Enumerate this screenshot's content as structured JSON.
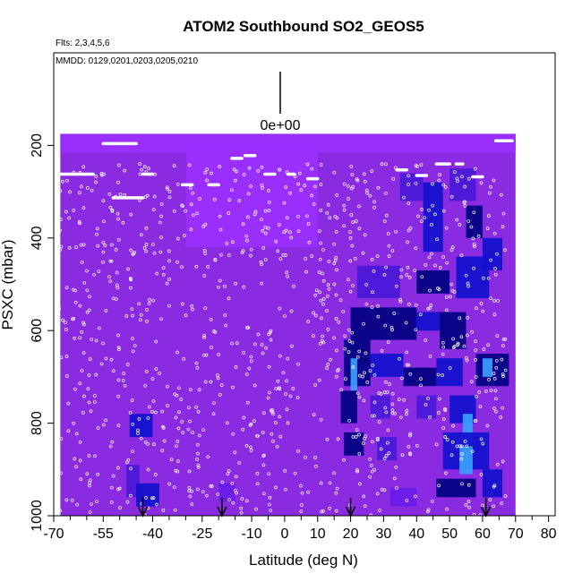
{
  "chart_data": {
    "type": "heatmap",
    "title": "ATOM2 Southbound SO2_GEOS5",
    "flights_label": "Flts: 2,3,4,5,6",
    "dates_label": "MMDD: 0129,0201,0203,0205,0210",
    "scale_label": "0e+00",
    "xlabel": "Latitude (deg N)",
    "ylabel": "PSXC (mbar)",
    "xlim": [
      -70,
      82
    ],
    "ylim": [
      1000,
      0
    ],
    "x_ticks": [
      -70,
      -55,
      -40,
      -25,
      -10,
      0,
      10,
      20,
      30,
      40,
      50,
      60,
      70,
      80
    ],
    "x_tick_labels": [
      "-70",
      "-55",
      "-40",
      "-25",
      "-10",
      "0",
      "10",
      "20",
      "30",
      "40",
      "50",
      "60",
      "70",
      "80"
    ],
    "y_ticks": [
      200,
      400,
      600,
      800,
      1000
    ],
    "y_tick_labels": [
      "200",
      "400",
      "600",
      "800",
      "1000"
    ],
    "colors": {
      "background": "#8a2be2",
      "light": "#9b30ff",
      "blue": "#1010cc",
      "navy": "#000080",
      "cyan": "#3aa0ff",
      "points": "#ffffff",
      "arrow": "#000000"
    },
    "field_extent": {
      "lat": [
        -68,
        70
      ],
      "p_top": 175,
      "p_bottom": 1000
    },
    "blocks": [
      {
        "lat": [
          -68,
          70
        ],
        "p": [
          175,
          215
        ],
        "level": 0
      },
      {
        "lat": [
          -30,
          10
        ],
        "p": [
          200,
          420
        ],
        "level": 0.1
      },
      {
        "lat": [
          -47,
          -40
        ],
        "p": [
          780,
          830
        ],
        "level": 0.8
      },
      {
        "lat": [
          -48,
          -44
        ],
        "p": [
          890,
          960
        ],
        "level": 0.5
      },
      {
        "lat": [
          -45,
          -38
        ],
        "p": [
          930,
          980
        ],
        "level": 0.7
      },
      {
        "lat": [
          -20,
          -15
        ],
        "p": [
          930,
          970
        ],
        "level": 0.4
      },
      {
        "lat": [
          35,
          42
        ],
        "p": [
          260,
          320
        ],
        "level": 0.6
      },
      {
        "lat": [
          42,
          48
        ],
        "p": [
          280,
          430
        ],
        "level": 0.8
      },
      {
        "lat": [
          50,
          58
        ],
        "p": [
          250,
          320
        ],
        "level": 0.6
      },
      {
        "lat": [
          55,
          60
        ],
        "p": [
          330,
          400
        ],
        "level": 0.9
      },
      {
        "lat": [
          60,
          66
        ],
        "p": [
          400,
          470
        ],
        "level": 0.7
      },
      {
        "lat": [
          22,
          35
        ],
        "p": [
          460,
          530
        ],
        "level": 0.5
      },
      {
        "lat": [
          40,
          50
        ],
        "p": [
          470,
          520
        ],
        "level": 0.9
      },
      {
        "lat": [
          52,
          62
        ],
        "p": [
          440,
          530
        ],
        "level": 0.8
      },
      {
        "lat": [
          20,
          40
        ],
        "p": [
          550,
          620
        ],
        "level": 0.9
      },
      {
        "lat": [
          40,
          47
        ],
        "p": [
          560,
          600
        ],
        "level": 0.7
      },
      {
        "lat": [
          47,
          55
        ],
        "p": [
          560,
          640
        ],
        "level": 0.85
      },
      {
        "lat": [
          18,
          26
        ],
        "p": [
          620,
          720
        ],
        "level": 0.9
      },
      {
        "lat": [
          20,
          22
        ],
        "p": [
          660,
          730
        ],
        "level": -1
      },
      {
        "lat": [
          26,
          36
        ],
        "p": [
          650,
          700
        ],
        "level": 0.8
      },
      {
        "lat": [
          36,
          46
        ],
        "p": [
          680,
          720
        ],
        "level": 0.9
      },
      {
        "lat": [
          46,
          54
        ],
        "p": [
          660,
          720
        ],
        "level": 0.75
      },
      {
        "lat": [
          58,
          68
        ],
        "p": [
          650,
          720
        ],
        "level": 0.85
      },
      {
        "lat": [
          60,
          63
        ],
        "p": [
          660,
          700
        ],
        "level": -1
      },
      {
        "lat": [
          17,
          22
        ],
        "p": [
          730,
          800
        ],
        "level": 0.9
      },
      {
        "lat": [
          26,
          32
        ],
        "p": [
          740,
          790
        ],
        "level": 0.6
      },
      {
        "lat": [
          40,
          46
        ],
        "p": [
          740,
          790
        ],
        "level": 0.55
      },
      {
        "lat": [
          50,
          58
        ],
        "p": [
          740,
          800
        ],
        "level": 0.8
      },
      {
        "lat": [
          54,
          57
        ],
        "p": [
          780,
          850
        ],
        "level": -1
      },
      {
        "lat": [
          18,
          24
        ],
        "p": [
          820,
          870
        ],
        "level": 0.85
      },
      {
        "lat": [
          28,
          34
        ],
        "p": [
          830,
          880
        ],
        "level": 0.6
      },
      {
        "lat": [
          48,
          62
        ],
        "p": [
          820,
          900
        ],
        "level": 0.8
      },
      {
        "lat": [
          53,
          57
        ],
        "p": [
          850,
          910
        ],
        "level": -1
      },
      {
        "lat": [
          46,
          58
        ],
        "p": [
          920,
          960
        ],
        "level": 0.85
      },
      {
        "lat": [
          60,
          66
        ],
        "p": [
          900,
          960
        ],
        "level": 0.75
      },
      {
        "lat": [
          32,
          40
        ],
        "p": [
          940,
          980
        ],
        "level": 0.4
      }
    ],
    "track_segments": [
      {
        "lat": [
          -68,
          -58
        ],
        "p": 262
      },
      {
        "lat": [
          -55,
          -45
        ],
        "p": 196
      },
      {
        "lat": [
          -52,
          -43
        ],
        "p": 313
      },
      {
        "lat": [
          -43,
          -40
        ],
        "p": 262
      },
      {
        "lat": [
          -31,
          -28
        ],
        "p": 285
      },
      {
        "lat": [
          -23,
          -20
        ],
        "p": 285
      },
      {
        "lat": [
          -16,
          -13
        ],
        "p": 228
      },
      {
        "lat": [
          -12,
          -9
        ],
        "p": 222
      },
      {
        "lat": [
          -6,
          -3
        ],
        "p": 262
      },
      {
        "lat": [
          1,
          3
        ],
        "p": 262
      },
      {
        "lat": [
          7,
          10
        ],
        "p": 272
      },
      {
        "lat": [
          34,
          37
        ],
        "p": 253
      },
      {
        "lat": [
          40,
          43
        ],
        "p": 265
      },
      {
        "lat": [
          46,
          50
        ],
        "p": 240
      },
      {
        "lat": [
          52,
          54
        ],
        "p": 240
      },
      {
        "lat": [
          57,
          60
        ],
        "p": 268
      },
      {
        "lat": [
          64,
          69
        ],
        "p": 190
      }
    ],
    "points_per_column": 24,
    "arrows_lat": [
      -43,
      -19,
      20,
      61
    ]
  }
}
